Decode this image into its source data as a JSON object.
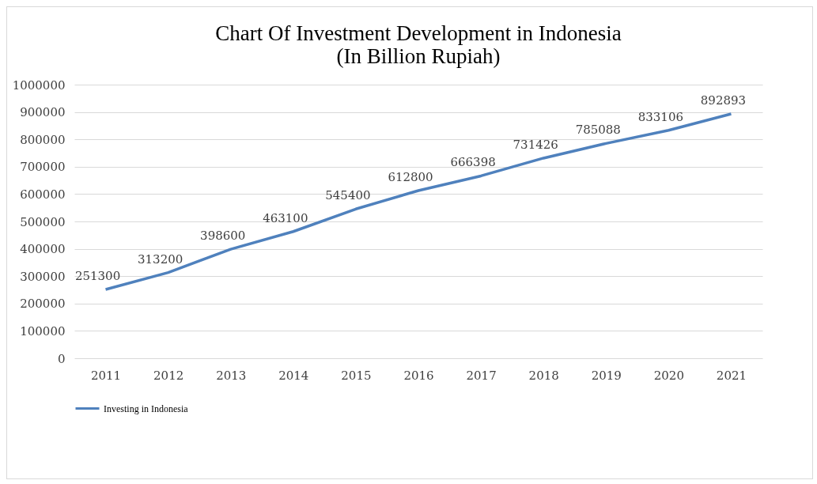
{
  "chart_data": {
    "type": "line",
    "title": "Chart Of Investment Development in Indonesia",
    "subtitle": "(In Billion Rupiah)",
    "categories": [
      "2011",
      "2012",
      "2013",
      "2014",
      "2015",
      "2016",
      "2017",
      "2018",
      "2019",
      "2020",
      "2021"
    ],
    "series": [
      {
        "name": "Investing in Indonesia",
        "color": "#4f81bd",
        "values": [
          251300,
          313200,
          398600,
          463100,
          545400,
          612800,
          666398,
          731426,
          785088,
          833106,
          892893
        ]
      }
    ],
    "ylim": [
      0,
      1000000
    ],
    "yticks": [
      0,
      100000,
      200000,
      300000,
      400000,
      500000,
      600000,
      700000,
      800000,
      900000,
      1000000
    ],
    "grid": "y",
    "legend": "bottom",
    "data_labels": true,
    "marker": "none",
    "line_style": "solid"
  }
}
